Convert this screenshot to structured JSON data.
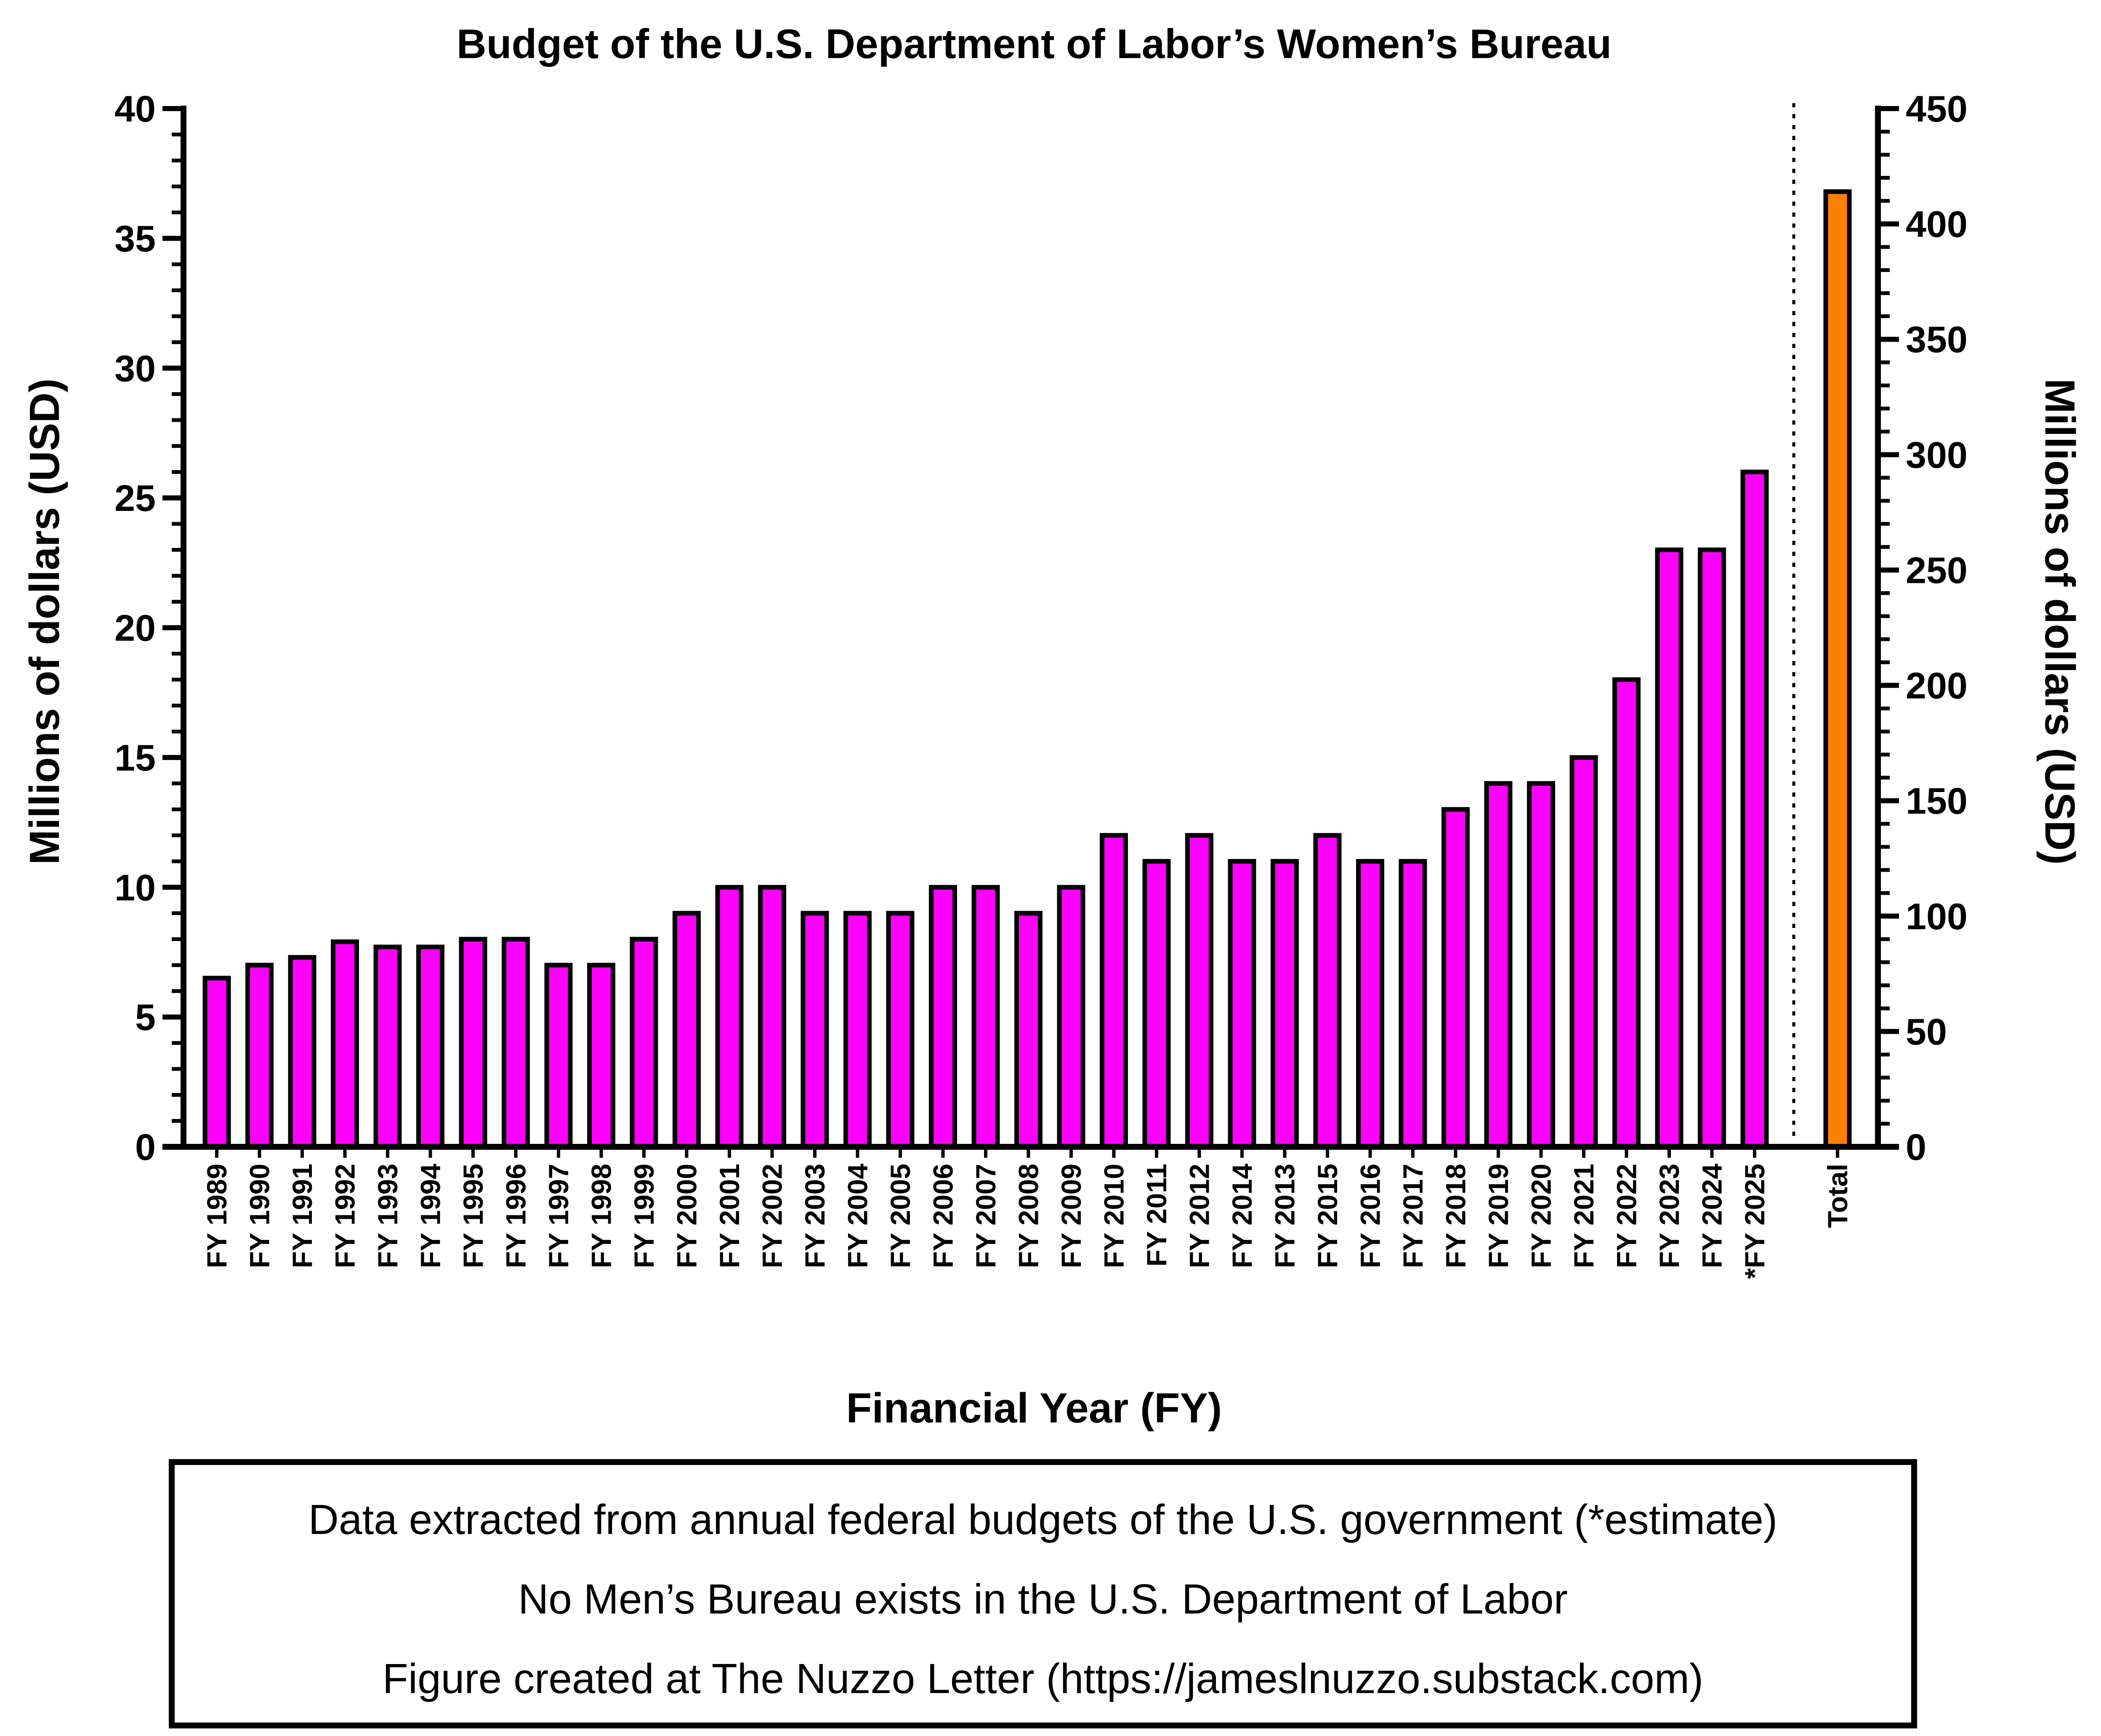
{
  "chart_data": {
    "type": "bar",
    "title": "Budget of the U.S. Department of Labor’s Women’s Bureau",
    "xlabel": "Financial Year (FY)",
    "ylabel": "Millions of dollars (USD)",
    "ylabel_right": "Millions of dollars (USD)",
    "ylim": [
      0,
      40
    ],
    "yticks": [
      "0",
      "5",
      "10",
      "15",
      "20",
      "25",
      "30",
      "35",
      "40"
    ],
    "ylim_right": [
      0,
      450
    ],
    "yticks_right": [
      "0",
      "50",
      "100",
      "150",
      "200",
      "250",
      "300",
      "350",
      "400",
      "450"
    ],
    "categories": [
      "FY 1989",
      "FY 1990",
      "FY 1991",
      "FY 1992",
      "FY 1993",
      "FY 1994",
      "FY 1995",
      "FY 1996",
      "FY 1997",
      "FY 1998",
      "FY 1999",
      "FY 2000",
      "FY 2001",
      "FY 2002",
      "FY 2003",
      "FY 2004",
      "FY 2005",
      "FY 2006",
      "FY 2007",
      "FY 2008",
      "FY 2009",
      "FY 2010",
      "FY 2011",
      "FY 2012",
      "FY 2014",
      "FY 2013",
      "FY 2015",
      "FY 2016",
      "FY 2017",
      "FY 2018",
      "FY 2019",
      "FY 2020",
      "FY 2021",
      "FY 2022",
      "FY 2023",
      "FY 2024",
      "*FY 2025"
    ],
    "values": [
      6.5,
      7.0,
      7.3,
      7.9,
      7.7,
      7.7,
      8.0,
      8.0,
      7.0,
      7.0,
      8.0,
      9.0,
      10.0,
      10.0,
      9.0,
      9.0,
      9.0,
      10.0,
      10.0,
      9.0,
      10.0,
      12.0,
      11.0,
      12.0,
      11.0,
      11.0,
      12.0,
      11.0,
      11.0,
      13.0,
      14.0,
      14.0,
      15.0,
      18.0,
      23.0,
      23.0,
      26.0
    ],
    "total": {
      "category": "Total",
      "value": 414,
      "axis": "right"
    },
    "colors": {
      "years": "#ff00ff",
      "total": "#ff8000",
      "outline": "#000000"
    },
    "grid": false,
    "notes": [
      "Data extracted from annual federal budgets of the U.S. government (*estimate)",
      "No Men’s Bureau exists in the U.S. Department of Labor",
      "Figure created at The Nuzzo Letter (https://jameslnuzzo.substack.com)"
    ]
  }
}
